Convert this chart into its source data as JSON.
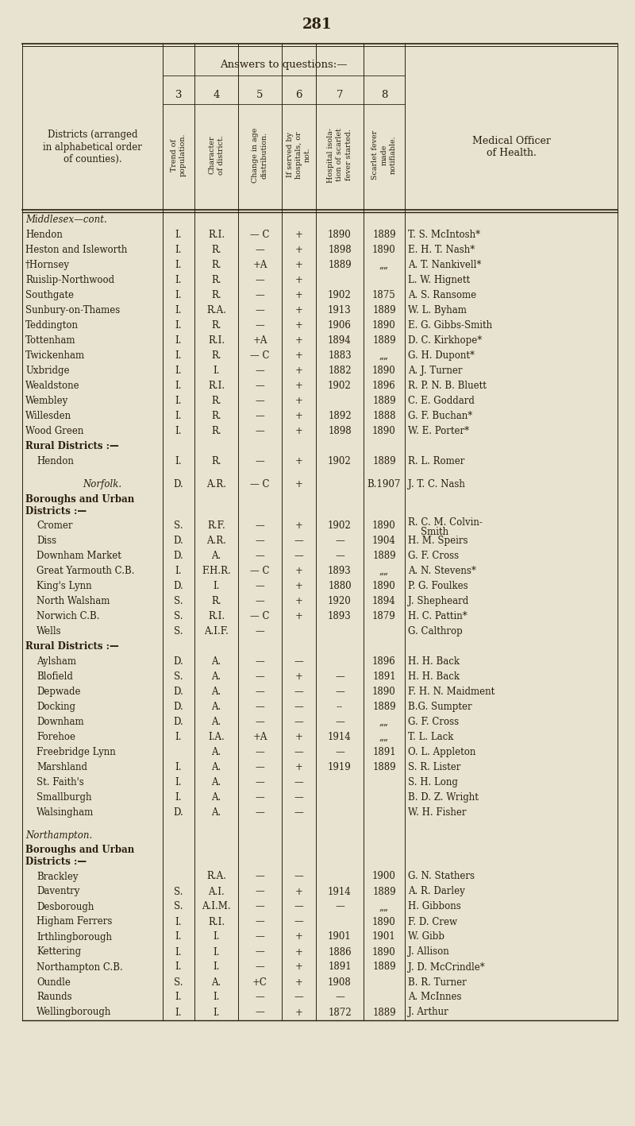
{
  "page_number": "281",
  "bg_color": "#e8e2d0",
  "text_color": "#2a1f0e",
  "header_answers": "Answers to questions:—",
  "col_numbers": [
    "3",
    "4",
    "5",
    "6",
    "7",
    "8"
  ],
  "col_headers_rotated": [
    "Trend of\npopulation.",
    "Character\nof district.",
    "Change in age\ndistribution.",
    "If served by\nhospitals, or\nnot.",
    "Hospital isola-\ntion of scarlet\nfever started.",
    "Scarlet fever\nmade\nnotifiable."
  ],
  "left_header": "Districts (arranged\nin alphabetical order\nof counties).",
  "right_header": "Medical Officer\nof Health.",
  "rows": [
    {
      "district": "Middlesex—cont.",
      "type": "section_italic",
      "col3": "",
      "col4": "",
      "col5": "",
      "col6": "",
      "col7": "",
      "col8": "",
      "officer": ""
    },
    {
      "district": "Hendon",
      "type": "data",
      "col3": "I.",
      "col4": "R.I.",
      "col5": "— C",
      "col6": "+",
      "col7": "1890",
      "col8": "1889",
      "officer": "T. S. McIntosh*"
    },
    {
      "district": "Heston and Isleworth",
      "type": "data",
      "col3": "I.",
      "col4": "R.",
      "col5": "—",
      "col6": "+",
      "col7": "1898",
      "col8": "1890",
      "officer": "E. H. T. Nash*"
    },
    {
      "district": "†Hornsey",
      "type": "data",
      "col3": "I.",
      "col4": "R.",
      "col5": "+A",
      "col6": "+",
      "col7": "1889",
      "col8": "„„",
      "officer": "A. T. Nankivell*"
    },
    {
      "district": "Ruislip-Northwood",
      "type": "data",
      "col3": "I.",
      "col4": "R.",
      "col5": "—",
      "col6": "+",
      "col7": "",
      "col8": "",
      "officer": "L. W. Hignett"
    },
    {
      "district": "Southgate",
      "type": "data",
      "col3": "I.",
      "col4": "R.",
      "col5": "—",
      "col6": "+",
      "col7": "1902",
      "col8": "1875",
      "officer": "A. S. Ransome"
    },
    {
      "district": "Sunbury-on-Thames",
      "type": "data",
      "col3": "I.",
      "col4": "R.A.",
      "col5": "—",
      "col6": "+",
      "col7": "1913",
      "col8": "1889",
      "officer": "W. L. Byham"
    },
    {
      "district": "Teddington",
      "type": "data",
      "col3": "I.",
      "col4": "R.",
      "col5": "—",
      "col6": "+",
      "col7": "1906",
      "col8": "1890",
      "officer": "E. G. Gibbs-Smith"
    },
    {
      "district": "Tottenham",
      "type": "data",
      "col3": "I.",
      "col4": "R.I.",
      "col5": "+A",
      "col6": "+",
      "col7": "1894",
      "col8": "1889",
      "officer": "D. C. Kirkhope*"
    },
    {
      "district": "Twickenham",
      "type": "data",
      "col3": "I.",
      "col4": "R.",
      "col5": "— C",
      "col6": "+",
      "col7": "1883",
      "col8": "„„",
      "officer": "G. H. Dupont*"
    },
    {
      "district": "Uxbridge",
      "type": "data",
      "col3": "I.",
      "col4": "I.",
      "col5": "—",
      "col6": "+",
      "col7": "1882",
      "col8": "1890",
      "officer": "A. J. Turner"
    },
    {
      "district": "Wealdstone",
      "type": "data",
      "col3": "I.",
      "col4": "R.I.",
      "col5": "—",
      "col6": "+",
      "col7": "1902",
      "col8": "1896",
      "officer": "R. P. N. B. Bluett"
    },
    {
      "district": "Wembley",
      "type": "data",
      "col3": "I.",
      "col4": "R.",
      "col5": "—",
      "col6": "+",
      "col7": "",
      "col8": "1889",
      "officer": "C. E. Goddard"
    },
    {
      "district": "Willesden",
      "type": "data",
      "col3": "I.",
      "col4": "R.",
      "col5": "—",
      "col6": "+",
      "col7": "1892",
      "col8": "1888",
      "officer": "G. F. Buchan*"
    },
    {
      "district": "Wood Green",
      "type": "data",
      "col3": "I.",
      "col4": "R.",
      "col5": "—",
      "col6": "+",
      "col7": "1898",
      "col8": "1890",
      "officer": "W. E. Porter*"
    },
    {
      "district": "Rural Districts :—",
      "type": "subsection_bold",
      "col3": "",
      "col4": "",
      "col5": "",
      "col6": "",
      "col7": "",
      "col8": "",
      "officer": ""
    },
    {
      "district": "Hendon",
      "type": "data_indent",
      "col3": "I.",
      "col4": "R.",
      "col5": "—",
      "col6": "+",
      "col7": "1902",
      "col8": "1889",
      "officer": "R. L. Romer"
    },
    {
      "district": "",
      "type": "spacer",
      "col3": "",
      "col4": "",
      "col5": "",
      "col6": "",
      "col7": "",
      "col8": "",
      "officer": ""
    },
    {
      "district": "Norfolk.",
      "type": "section_italic_data",
      "col3": "D.",
      "col4": "A.R.",
      "col5": "— C",
      "col6": "+",
      "col7": "",
      "col8": "B.1907",
      "officer": "J. T. C. Nash"
    },
    {
      "district": "Boroughs and Urban\nDistricts :—",
      "type": "subsection_bold",
      "col3": "",
      "col4": "",
      "col5": "",
      "col6": "",
      "col7": "",
      "col8": "",
      "officer": ""
    },
    {
      "district": "Cromer",
      "type": "data_indent_tall",
      "col3": "S.",
      "col4": "R.F.",
      "col5": "—",
      "col6": "+",
      "col7": "1902",
      "col8": "1890",
      "officer": "R. C. M. Colvin-\nSmith"
    },
    {
      "district": "Diss",
      "type": "data_indent",
      "col3": "D.",
      "col4": "A.R.",
      "col5": "—",
      "col6": "—",
      "col7": "—",
      "col8": "1904",
      "officer": "H. M. Speirs"
    },
    {
      "district": "Downham Market",
      "type": "data_indent",
      "col3": "D.",
      "col4": "A.",
      "col5": "—",
      "col6": "—",
      "col7": "—",
      "col8": "1889",
      "officer": "G. F. Cross"
    },
    {
      "district": "Great Yarmouth C.B.",
      "type": "data_indent",
      "col3": "I.",
      "col4": "F.H.R.",
      "col5": "— C",
      "col6": "+",
      "col7": "1893",
      "col8": "„„",
      "officer": "A. N. Stevens*"
    },
    {
      "district": "King's Lynn",
      "type": "data_indent",
      "col3": "D.",
      "col4": "I.",
      "col5": "—",
      "col6": "+",
      "col7": "1880",
      "col8": "1890",
      "officer": "P. G. Foulkes"
    },
    {
      "district": "North Walsham",
      "type": "data_indent",
      "col3": "S.",
      "col4": "R.",
      "col5": "—",
      "col6": "+",
      "col7": "1920",
      "col8": "1894",
      "officer": "J. Shepheard"
    },
    {
      "district": "Norwich C.B.",
      "type": "data_indent",
      "col3": "S.",
      "col4": "R.I.",
      "col5": "— C",
      "col6": "+",
      "col7": "1893",
      "col8": "1879",
      "officer": "H. C. Pattin*"
    },
    {
      "district": "Wells",
      "type": "data_indent",
      "col3": "S.",
      "col4": "A.I.F.",
      "col5": "—",
      "col6": "",
      "col7": "",
      "col8": "",
      "officer": "G. Calthrop"
    },
    {
      "district": "Rural Districts :—",
      "type": "subsection_bold",
      "col3": "",
      "col4": "",
      "col5": "",
      "col6": "",
      "col7": "",
      "col8": "",
      "officer": ""
    },
    {
      "district": "Aylsham",
      "type": "data_indent",
      "col3": "D.",
      "col4": "A.",
      "col5": "—",
      "col6": "—",
      "col7": "",
      "col8": "1896",
      "officer": "H. H. Back"
    },
    {
      "district": "Blofield",
      "type": "data_indent",
      "col3": "S.",
      "col4": "A.",
      "col5": "—",
      "col6": "+",
      "col7": "—",
      "col8": "1891",
      "officer": "H. H. Back"
    },
    {
      "district": "Depwade",
      "type": "data_indent",
      "col3": "D.",
      "col4": "A.",
      "col5": "—",
      "col6": "—",
      "col7": "—",
      "col8": "1890",
      "officer": "F. H. N. Maidment"
    },
    {
      "district": "Docking",
      "type": "data_indent",
      "col3": "D.",
      "col4": "A.",
      "col5": "—",
      "col6": "—",
      "col7": "--",
      "col8": "1889",
      "officer": "B.G. Sumpter"
    },
    {
      "district": "Downham",
      "type": "data_indent",
      "col3": "D.",
      "col4": "A.",
      "col5": "—",
      "col6": "—",
      "col7": "—",
      "col8": "„„",
      "officer": "G. F. Cross"
    },
    {
      "district": "Forehoe",
      "type": "data_indent",
      "col3": "I.",
      "col4": "I.A.",
      "col5": "+A",
      "col6": "+",
      "col7": "1914",
      "col8": "„„",
      "officer": "T. L. Lack"
    },
    {
      "district": "Freebridge Lynn",
      "type": "data_indent",
      "col3": "",
      "col4": "A.",
      "col5": "—",
      "col6": "—",
      "col7": "—",
      "col8": "1891",
      "officer": "O. L. Appleton"
    },
    {
      "district": "Marshland",
      "type": "data_indent",
      "col3": "I.",
      "col4": "A.",
      "col5": "—",
      "col6": "+",
      "col7": "1919",
      "col8": "1889",
      "officer": "S. R. Lister"
    },
    {
      "district": "St. Faith's",
      "type": "data_indent",
      "col3": "I.",
      "col4": "A.",
      "col5": "—",
      "col6": "—",
      "col7": "",
      "col8": "",
      "officer": "S. H. Long"
    },
    {
      "district": "Smallburgh",
      "type": "data_indent",
      "col3": "I.",
      "col4": "A.",
      "col5": "—",
      "col6": "—",
      "col7": "",
      "col8": "",
      "officer": "B. D. Z. Wright"
    },
    {
      "district": "Walsingham",
      "type": "data_indent",
      "col3": "D.",
      "col4": "A.",
      "col5": "—",
      "col6": "—",
      "col7": "",
      "col8": "",
      "officer": "W. H. Fisher"
    },
    {
      "district": "",
      "type": "spacer",
      "col3": "",
      "col4": "",
      "col5": "",
      "col6": "",
      "col7": "",
      "col8": "",
      "officer": ""
    },
    {
      "district": "Northampton.",
      "type": "section_italic",
      "col3": "",
      "col4": "",
      "col5": "",
      "col6": "",
      "col7": "",
      "col8": "",
      "officer": ""
    },
    {
      "district": "Boroughs and Urban\nDistricts :—",
      "type": "subsection_bold",
      "col3": "",
      "col4": "",
      "col5": "",
      "col6": "",
      "col7": "",
      "col8": "",
      "officer": ""
    },
    {
      "district": "Brackley",
      "type": "data_indent",
      "col3": "",
      "col4": "R.A.",
      "col5": "—",
      "col6": "—",
      "col7": "",
      "col8": "1900",
      "officer": "G. N. Stathers"
    },
    {
      "district": "Daventry",
      "type": "data_indent",
      "col3": "S.",
      "col4": "A.I.",
      "col5": "—",
      "col6": "+",
      "col7": "1914",
      "col8": "1889",
      "officer": "A. R. Darley"
    },
    {
      "district": "Desborough",
      "type": "data_indent",
      "col3": "S.",
      "col4": "A.I.M.",
      "col5": "—",
      "col6": "—",
      "col7": "—",
      "col8": "„„",
      "officer": "H. Gibbons"
    },
    {
      "district": "Higham Ferrers",
      "type": "data_indent",
      "col3": "I.",
      "col4": "R.I.",
      "col5": "—",
      "col6": "—",
      "col7": "",
      "col8": "1890",
      "officer": "F. D. Crew"
    },
    {
      "district": "Irthlingborough",
      "type": "data_indent",
      "col3": "I.",
      "col4": "I.",
      "col5": "—",
      "col6": "+",
      "col7": "1901",
      "col8": "1901",
      "officer": "W. Gibb"
    },
    {
      "district": "Kettering",
      "type": "data_indent",
      "col3": "I.",
      "col4": "I.",
      "col5": "—",
      "col6": "+",
      "col7": "1886",
      "col8": "1890",
      "officer": "J. Allison"
    },
    {
      "district": "Northampton C.B.",
      "type": "data_indent",
      "col3": "I.",
      "col4": "I.",
      "col5": "—",
      "col6": "+",
      "col7": "1891",
      "col8": "1889",
      "officer": "J. D. McCrindle*"
    },
    {
      "district": "Oundle",
      "type": "data_indent",
      "col3": "S.",
      "col4": "A.",
      "col5": "+C",
      "col6": "+",
      "col7": "1908",
      "col8": "",
      "officer": "B. R. Turner"
    },
    {
      "district": "Raunds",
      "type": "data_indent",
      "col3": "I.",
      "col4": "I.",
      "col5": "—",
      "col6": "—",
      "col7": "—",
      "col8": "",
      "officer": "A. McInnes"
    },
    {
      "district": "Wellingborough",
      "type": "data_indent",
      "col3": "I.",
      "col4": "I.",
      "col5": "—",
      "col6": "+",
      "col7": "1872",
      "col8": "1889",
      "officer": "J. Arthur"
    }
  ]
}
